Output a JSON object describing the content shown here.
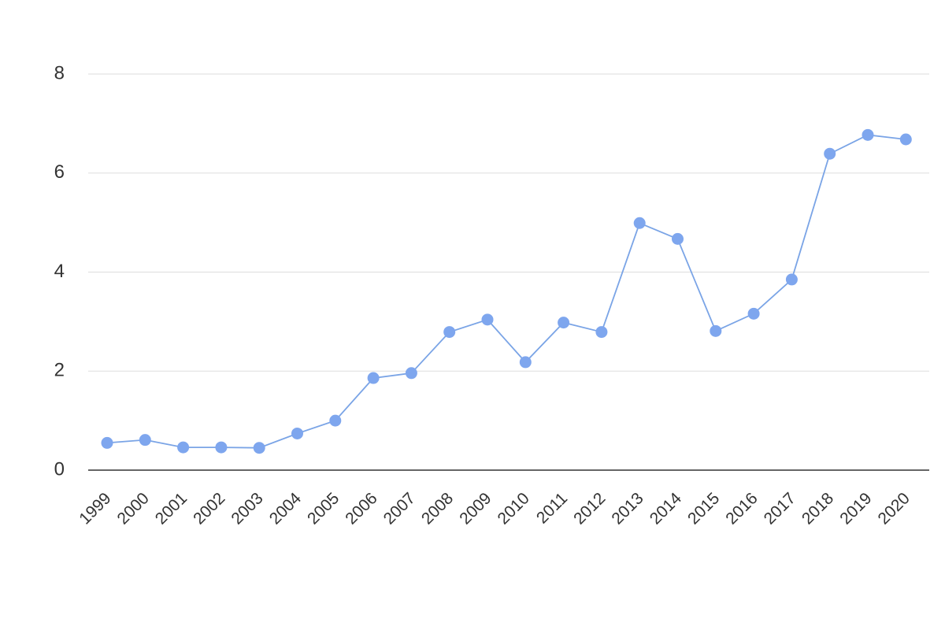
{
  "chart_data": {
    "type": "line",
    "title": "",
    "xlabel": "",
    "ylabel": "",
    "categories": [
      "1999",
      "2000",
      "2001",
      "2002",
      "2003",
      "2004",
      "2005",
      "2006",
      "2007",
      "2008",
      "2009",
      "2010",
      "2011",
      "2012",
      "2013",
      "2014",
      "2015",
      "2016",
      "2017",
      "2018",
      "2019",
      "2020"
    ],
    "series": [
      {
        "values": [
          0.55,
          0.61,
          0.46,
          0.46,
          0.45,
          0.74,
          1.0,
          1.86,
          1.96,
          2.79,
          3.04,
          2.18,
          2.98,
          2.79,
          4.99,
          4.67,
          2.81,
          3.16,
          3.85,
          6.39,
          6.77,
          6.68
        ]
      }
    ],
    "ylim": [
      0,
      8
    ],
    "yticks": [
      0,
      2,
      4,
      6,
      8
    ],
    "grid": true,
    "legend": "none",
    "colors": {
      "series": "#7ea6ee",
      "series_line": "#7aa4e6"
    }
  }
}
